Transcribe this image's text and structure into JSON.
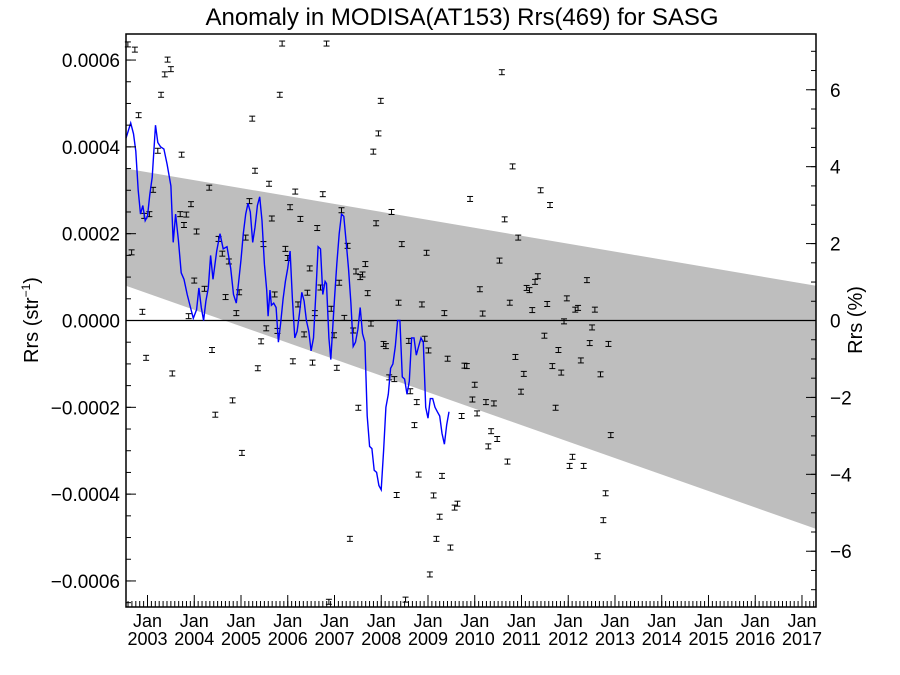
{
  "chart_data": {
    "type": "scatter",
    "title": "Anomaly in MODISA(AT153) Rrs(469) for SASG",
    "ylabel_left": "Rrs (str",
    "ylabel_left_sup": "−1",
    "ylabel_left_close": ")",
    "ylabel_right": "Rrs (%)",
    "ylim_left": [
      -0.00066,
      0.00066
    ],
    "ylim_right": [
      -7.45,
      7.45
    ],
    "xlim": [
      2002.54,
      2017.3
    ],
    "left_ticks": [
      {
        "v": 0.0006,
        "label": "0.0006"
      },
      {
        "v": 0.0004,
        "label": "0.0004"
      },
      {
        "v": 0.0002,
        "label": "0.0002"
      },
      {
        "v": 0.0,
        "label": "0.0000"
      },
      {
        "v": -0.0002,
        "label": "−0.0002"
      },
      {
        "v": -0.0004,
        "label": "−0.0004"
      },
      {
        "v": -0.0006,
        "label": "−0.0006"
      }
    ],
    "right_ticks": [
      {
        "v": 6,
        "label": "6"
      },
      {
        "v": 4,
        "label": "4"
      },
      {
        "v": 2,
        "label": "2"
      },
      {
        "v": 0,
        "label": "0"
      },
      {
        "v": -2,
        "label": "−2"
      },
      {
        "v": -4,
        "label": "−4"
      },
      {
        "v": -6,
        "label": "−6"
      }
    ],
    "x_ticks": [
      {
        "v": 2003.0,
        "month": "Jan",
        "year": "2003"
      },
      {
        "v": 2004.0,
        "month": "Jan",
        "year": "2004"
      },
      {
        "v": 2005.0,
        "month": "Jan",
        "year": "2005"
      },
      {
        "v": 2006.0,
        "month": "Jan",
        "year": "2006"
      },
      {
        "v": 2007.0,
        "month": "Jan",
        "year": "2007"
      },
      {
        "v": 2008.0,
        "month": "Jan",
        "year": "2008"
      },
      {
        "v": 2009.0,
        "month": "Jan",
        "year": "2009"
      },
      {
        "v": 2010.0,
        "month": "Jan",
        "year": "2010"
      },
      {
        "v": 2011.0,
        "month": "Jan",
        "year": "2011"
      },
      {
        "v": 2012.0,
        "month": "Jan",
        "year": "2012"
      },
      {
        "v": 2013.0,
        "month": "Jan",
        "year": "2013"
      },
      {
        "v": 2014.0,
        "month": "Jan",
        "year": "2014"
      },
      {
        "v": 2015.0,
        "month": "Jan",
        "year": "2015"
      },
      {
        "v": 2016.0,
        "month": "Jan",
        "year": "2016"
      },
      {
        "v": 2017.0,
        "month": "Jan",
        "year": "2017"
      }
    ],
    "band": {
      "upper": [
        [
          2002.54,
          0.00035
        ],
        [
          2017.3,
          8e-05
        ]
      ],
      "lower": [
        [
          2002.54,
          8e-05
        ],
        [
          2017.3,
          -0.00048
        ]
      ]
    },
    "zero_line": 0.0,
    "points": [
      [
        2002.58,
        0.000636
      ],
      [
        2002.66,
        0.000157
      ],
      [
        2002.73,
        0.000624
      ],
      [
        2002.81,
        0.000473
      ],
      [
        2002.89,
        2e-05
      ],
      [
        2002.93,
        0.000241
      ],
      [
        2002.97,
        -8.6e-05
      ],
      [
        2003.04,
        0.000245
      ],
      [
        2003.12,
        0.000301
      ],
      [
        2003.22,
        0.000391
      ],
      [
        2003.29,
        0.00052
      ],
      [
        2003.37,
        0.000567
      ],
      [
        2003.43,
        0.000601
      ],
      [
        2003.5,
        0.000579
      ],
      [
        2003.53,
        -0.000122
      ],
      [
        2003.7,
        0.000245
      ],
      [
        2003.73,
        0.000382
      ],
      [
        2003.78,
        0.00022
      ],
      [
        2003.83,
        0.000244
      ],
      [
        2003.88,
        1e-05
      ],
      [
        2003.93,
        0.000268
      ],
      [
        2004.0,
        9.2e-05
      ],
      [
        2004.05,
        0.000205
      ],
      [
        2004.22,
        7.3e-05
      ],
      [
        2004.32,
        0.000306
      ],
      [
        2004.38,
        -6.8e-05
      ],
      [
        2004.45,
        -0.000217
      ],
      [
        2004.52,
        0.000188
      ],
      [
        2004.6,
        0.000154
      ],
      [
        2004.67,
        5.4e-05
      ],
      [
        2004.74,
        0.000136
      ],
      [
        2004.82,
        -0.000184
      ],
      [
        2004.9,
        1.7e-05
      ],
      [
        2004.96,
        6.5e-05
      ],
      [
        2005.02,
        -0.000305
      ],
      [
        2005.1,
        0.000191
      ],
      [
        2005.18,
        0.000275
      ],
      [
        2005.24,
        0.000465
      ],
      [
        2005.3,
        0.000345
      ],
      [
        2005.36,
        -0.00011
      ],
      [
        2005.43,
        -4.8e-05
      ],
      [
        2005.48,
        0.000176
      ],
      [
        2005.54,
        -1.8e-05
      ],
      [
        2005.6,
        0.000315
      ],
      [
        2005.66,
        0.000235
      ],
      [
        2005.72,
        6e-05
      ],
      [
        2005.78,
        -2.4e-05
      ],
      [
        2005.83,
        0.00052
      ],
      [
        2005.88,
        0.000638
      ],
      [
        2005.95,
        0.000165
      ],
      [
        2006.0,
        0.000144
      ],
      [
        2006.05,
        0.000261
      ],
      [
        2006.11,
        -9.4e-05
      ],
      [
        2006.16,
        0.000297
      ],
      [
        2006.22,
        3.7e-05
      ],
      [
        2006.27,
        0.000234
      ],
      [
        2006.35,
        -3.2e-05
      ],
      [
        2006.42,
        6.4e-05
      ],
      [
        2006.47,
        0.00012
      ],
      [
        2006.53,
        -9.7e-05
      ],
      [
        2006.58,
        1.7e-05
      ],
      [
        2006.63,
        0.000213
      ],
      [
        2006.7,
        7.6e-05
      ],
      [
        2006.75,
        0.000291
      ],
      [
        2006.83,
        0.000638
      ],
      [
        2006.88,
        -0.000648
      ],
      [
        2006.93,
        2.7e-05
      ],
      [
        2006.99,
        -3.4e-05
      ],
      [
        2007.05,
        -0.000109
      ],
      [
        2007.1,
        8.7e-05
      ],
      [
        2007.15,
        0.000254
      ],
      [
        2007.21,
        6e-06
      ],
      [
        2007.28,
        0.000172
      ],
      [
        2007.33,
        -0.000503
      ],
      [
        2007.4,
        -2.3e-05
      ],
      [
        2007.46,
        0.000113
      ],
      [
        2007.51,
        -0.000201
      ],
      [
        2007.55,
        0.0001
      ],
      [
        2007.6,
        0.000106
      ],
      [
        2007.66,
        0.00013
      ],
      [
        2007.71,
        6.3e-05
      ],
      [
        2007.78,
        -7e-06
      ],
      [
        2007.83,
        0.000389
      ],
      [
        2007.89,
        0.000224
      ],
      [
        2007.94,
        0.000431
      ],
      [
        2007.99,
        0.000506
      ],
      [
        2008.05,
        -5.4e-05
      ],
      [
        2008.1,
        -5.9e-05
      ],
      [
        2008.17,
        -0.000131
      ],
      [
        2008.22,
        0.00025
      ],
      [
        2008.28,
        -0.000135
      ],
      [
        2008.33,
        -0.000402
      ],
      [
        2008.37,
        4.1e-05
      ],
      [
        2008.44,
        0.000176
      ],
      [
        2008.52,
        -0.000643
      ],
      [
        2008.59,
        -4.7e-05
      ],
      [
        2008.62,
        -0.000163
      ],
      [
        2008.71,
        -0.000241
      ],
      [
        2008.76,
        -0.000188
      ],
      [
        2008.8,
        -0.000355
      ],
      [
        2008.87,
        3.7e-05
      ],
      [
        2008.93,
        -4.2e-05
      ],
      [
        2008.97,
        0.000156
      ],
      [
        2009.01,
        -6.9e-05
      ],
      [
        2009.04,
        -0.000585
      ],
      [
        2009.12,
        -0.000403
      ],
      [
        2009.18,
        -0.000503
      ],
      [
        2009.25,
        -0.000452
      ],
      [
        2009.3,
        -0.000358
      ],
      [
        2009.35,
        1.7e-05
      ],
      [
        2009.42,
        -8.8e-05
      ],
      [
        2009.48,
        -0.000523
      ],
      [
        2009.57,
        -0.000431
      ],
      [
        2009.63,
        -0.000422
      ],
      [
        2009.72,
        -0.00022
      ],
      [
        2009.78,
        -0.000104
      ],
      [
        2009.83,
        -0.000105
      ],
      [
        2009.9,
        0.00028
      ],
      [
        2009.95,
        -0.000182
      ],
      [
        2010.0,
        -0.000148
      ],
      [
        2010.05,
        -0.000214
      ],
      [
        2010.11,
        7.2e-05
      ],
      [
        2010.17,
        1.6e-05
      ],
      [
        2010.24,
        -0.000188
      ],
      [
        2010.29,
        -0.00029
      ],
      [
        2010.35,
        -0.000255
      ],
      [
        2010.41,
        -0.000191
      ],
      [
        2010.48,
        -0.000273
      ],
      [
        2010.53,
        0.000138
      ],
      [
        2010.58,
        0.000572
      ],
      [
        2010.64,
        0.000233
      ],
      [
        2010.7,
        -0.000325
      ],
      [
        2010.75,
        4.1e-05
      ],
      [
        2010.81,
        0.000355
      ],
      [
        2010.87,
        -8.4e-05
      ],
      [
        2010.93,
        0.000191
      ],
      [
        2010.99,
        -0.000164
      ],
      [
        2011.05,
        -0.000123
      ],
      [
        2011.11,
        7.5e-05
      ],
      [
        2011.17,
        7e-05
      ],
      [
        2011.23,
        2.4e-05
      ],
      [
        2011.29,
        8.9e-05
      ],
      [
        2011.35,
        0.000102
      ],
      [
        2011.41,
        0.0003
      ],
      [
        2011.49,
        -3.5e-05
      ],
      [
        2011.55,
        3.8e-05
      ],
      [
        2011.61,
        0.000266
      ],
      [
        2011.66,
        -0.000105
      ],
      [
        2011.73,
        -0.000201
      ],
      [
        2011.79,
        -6.8e-05
      ],
      [
        2011.85,
        -0.00012
      ],
      [
        2011.91,
        -2e-06
      ],
      [
        2011.97,
        5.1e-05
      ],
      [
        2012.03,
        -0.000335
      ],
      [
        2012.09,
        -0.000314
      ],
      [
        2012.15,
        2.5e-05
      ],
      [
        2012.21,
        2.9e-05
      ],
      [
        2012.27,
        -9.2e-05
      ],
      [
        2012.33,
        -0.000335
      ],
      [
        2012.4,
        9.3e-05
      ],
      [
        2012.46,
        -5.2e-05
      ],
      [
        2012.51,
        -1.6e-05
      ],
      [
        2012.57,
        2.5e-05
      ],
      [
        2012.63,
        -0.000543
      ],
      [
        2012.69,
        -0.000124
      ],
      [
        2012.75,
        -0.00046
      ],
      [
        2012.8,
        -0.000398
      ],
      [
        2012.86,
        -5.4e-05
      ],
      [
        2012.91,
        -0.000264
      ]
    ],
    "smooth_line": [
      [
        2002.54,
        0.00042
      ],
      [
        2002.64,
        0.000455
      ],
      [
        2002.7,
        0.00043
      ],
      [
        2002.75,
        0.00039
      ],
      [
        2002.8,
        0.0003
      ],
      [
        2002.85,
        0.000245
      ],
      [
        2002.9,
        0.000265
      ],
      [
        2002.95,
        0.00023
      ],
      [
        2003.0,
        0.00024
      ],
      [
        2003.05,
        0.00029
      ],
      [
        2003.1,
        0.00033
      ],
      [
        2003.17,
        0.00045
      ],
      [
        2003.22,
        0.00041
      ],
      [
        2003.28,
        0.0004
      ],
      [
        2003.35,
        0.000395
      ],
      [
        2003.42,
        0.00036
      ],
      [
        2003.5,
        0.00031
      ],
      [
        2003.55,
        0.00018
      ],
      [
        2003.6,
        0.000245
      ],
      [
        2003.66,
        0.000185
      ],
      [
        2003.72,
        0.00011
      ],
      [
        2003.78,
        9.5e-05
      ],
      [
        2003.85,
        6e-05
      ],
      [
        2003.92,
        3e-05
      ],
      [
        2003.98,
        5e-06
      ],
      [
        2004.05,
        2.5e-05
      ],
      [
        2004.1,
        7.5e-05
      ],
      [
        2004.15,
        3e-05
      ],
      [
        2004.2,
        0.0
      ],
      [
        2004.25,
        4.5e-05
      ],
      [
        2004.3,
        7.5e-05
      ],
      [
        2004.35,
        0.00015
      ],
      [
        2004.4,
        9.5e-05
      ],
      [
        2004.48,
        0.00016
      ],
      [
        2004.55,
        0.0002
      ],
      [
        2004.62,
        0.000165
      ],
      [
        2004.7,
        0.00017
      ],
      [
        2004.78,
        0.00012
      ],
      [
        2004.84,
        6e-05
      ],
      [
        2004.9,
        4e-05
      ],
      [
        2004.95,
        9e-05
      ],
      [
        2005.0,
        0.00014
      ],
      [
        2005.05,
        0.0002
      ],
      [
        2005.1,
        0.000245
      ],
      [
        2005.15,
        0.00027
      ],
      [
        2005.2,
        0.00025
      ],
      [
        2005.25,
        0.00018
      ],
      [
        2005.3,
        0.000215
      ],
      [
        2005.35,
        0.000265
      ],
      [
        2005.4,
        0.000285
      ],
      [
        2005.45,
        0.00023
      ],
      [
        2005.5,
        0.00013
      ],
      [
        2005.55,
        7e-05
      ],
      [
        2005.58,
        1e-05
      ],
      [
        2005.62,
        7e-05
      ],
      [
        2005.65,
        3.5e-05
      ],
      [
        2005.7,
        4e-05
      ],
      [
        2005.75,
        3e-05
      ],
      [
        2005.8,
        -5e-05
      ],
      [
        2005.85,
        -5e-06
      ],
      [
        2005.9,
        5e-05
      ],
      [
        2005.95,
        9e-05
      ],
      [
        2006.0,
        0.00012
      ],
      [
        2006.05,
        0.00016
      ],
      [
        2006.1,
        5e-05
      ],
      [
        2006.15,
        -4e-05
      ],
      [
        2006.2,
        -2.5e-05
      ],
      [
        2006.25,
        1.5e-05
      ],
      [
        2006.3,
        6.5e-05
      ],
      [
        2006.35,
        4.5e-05
      ],
      [
        2006.4,
        0.0
      ],
      [
        2006.45,
        -2.5e-05
      ],
      [
        2006.5,
        -7e-05
      ],
      [
        2006.55,
        -4e-05
      ],
      [
        2006.6,
        6e-05
      ],
      [
        2006.65,
        0.00017
      ],
      [
        2006.7,
        0.000165
      ],
      [
        2006.75,
        6e-05
      ],
      [
        2006.8,
        9e-05
      ],
      [
        2006.83,
        8.5e-05
      ],
      [
        2006.88,
        -4e-05
      ],
      [
        2006.92,
        -9e-05
      ],
      [
        2007.0,
        5e-05
      ],
      [
        2007.05,
        0.00013
      ],
      [
        2007.1,
        0.0002
      ],
      [
        2007.15,
        0.000245
      ],
      [
        2007.2,
        0.00024
      ],
      [
        2007.25,
        0.00018
      ],
      [
        2007.3,
        0.00012
      ],
      [
        2007.35,
        4e-05
      ],
      [
        2007.4,
        -6e-05
      ],
      [
        2007.45,
        -5e-05
      ],
      [
        2007.5,
        -2e-05
      ],
      [
        2007.55,
        3e-05
      ],
      [
        2007.6,
        -3e-05
      ],
      [
        2007.65,
        -5e-05
      ],
      [
        2007.7,
        -0.00022
      ],
      [
        2007.75,
        -0.00029
      ],
      [
        2007.8,
        -0.000295
      ],
      [
        2007.85,
        -0.000345
      ],
      [
        2007.9,
        -0.00035
      ],
      [
        2007.95,
        -0.00038
      ],
      [
        2008.0,
        -0.00039
      ],
      [
        2008.05,
        -0.0003
      ],
      [
        2008.1,
        -0.0002
      ],
      [
        2008.15,
        -0.00017
      ],
      [
        2008.2,
        -0.00011
      ],
      [
        2008.25,
        -0.0001
      ],
      [
        2008.3,
        -6e-05
      ],
      [
        2008.35,
        0.0
      ],
      [
        2008.4,
        0.0
      ],
      [
        2008.45,
        -0.00013
      ],
      [
        2008.5,
        -0.000135
      ],
      [
        2008.55,
        -0.00017
      ],
      [
        2008.6,
        -0.00014
      ],
      [
        2008.65,
        -4e-05
      ],
      [
        2008.7,
        -4e-05
      ],
      [
        2008.75,
        -8e-05
      ],
      [
        2008.8,
        -6e-05
      ],
      [
        2008.85,
        -4e-05
      ],
      [
        2008.9,
        -5e-05
      ],
      [
        2008.95,
        -0.0002
      ],
      [
        2009.0,
        -0.000225
      ],
      [
        2009.05,
        -0.00018
      ],
      [
        2009.1,
        -0.00018
      ],
      [
        2009.15,
        -0.0002
      ],
      [
        2009.2,
        -0.00021
      ],
      [
        2009.25,
        -0.00022
      ],
      [
        2009.3,
        -0.00026
      ],
      [
        2009.35,
        -0.000285
      ],
      [
        2009.4,
        -0.00024
      ],
      [
        2009.45,
        -0.00021
      ]
    ]
  }
}
